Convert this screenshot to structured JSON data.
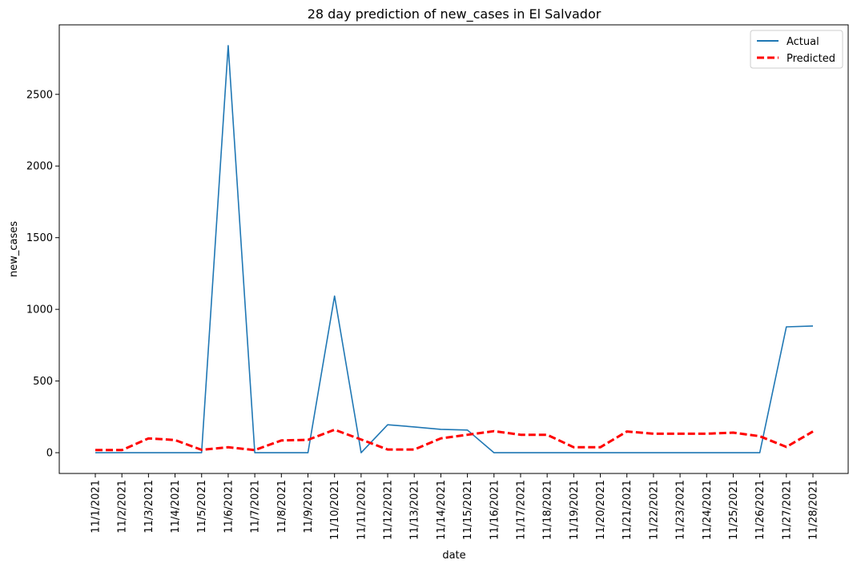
{
  "chart_data": {
    "type": "line",
    "title": "28 day prediction of new_cases in El Salvador",
    "xlabel": "date",
    "ylabel": "new_cases",
    "categories": [
      "11/1/2021",
      "11/2/2021",
      "11/3/2021",
      "11/4/2021",
      "11/5/2021",
      "11/6/2021",
      "11/7/2021",
      "11/8/2021",
      "11/9/2021",
      "11/10/2021",
      "11/11/2021",
      "11/12/2021",
      "11/13/2021",
      "11/14/2021",
      "11/15/2021",
      "11/16/2021",
      "11/17/2021",
      "11/18/2021",
      "11/19/2021",
      "11/20/2021",
      "11/21/2021",
      "11/22/2021",
      "11/23/2021",
      "11/24/2021",
      "11/25/2021",
      "11/26/2021",
      "11/27/2021",
      "11/28/2021"
    ],
    "yticks": [
      0,
      500,
      1000,
      1500,
      2000,
      2500
    ],
    "ylim": [
      -145,
      2985
    ],
    "grid": false,
    "legend_position": "top-right",
    "series": [
      {
        "name": "Actual",
        "color": "#1f77b4",
        "style": "solid",
        "values": [
          0,
          0,
          0,
          0,
          0,
          2840,
          0,
          0,
          0,
          1093,
          0,
          195,
          180,
          163,
          158,
          0,
          0,
          0,
          0,
          0,
          0,
          0,
          0,
          0,
          0,
          0,
          878,
          884
        ]
      },
      {
        "name": "Predicted",
        "color": "#ff0000",
        "style": "dashed",
        "values": [
          18,
          18,
          100,
          88,
          20,
          38,
          18,
          85,
          90,
          160,
          92,
          22,
          22,
          100,
          125,
          150,
          125,
          125,
          38,
          38,
          148,
          132,
          132,
          132,
          140,
          115,
          40,
          148
        ]
      }
    ]
  }
}
